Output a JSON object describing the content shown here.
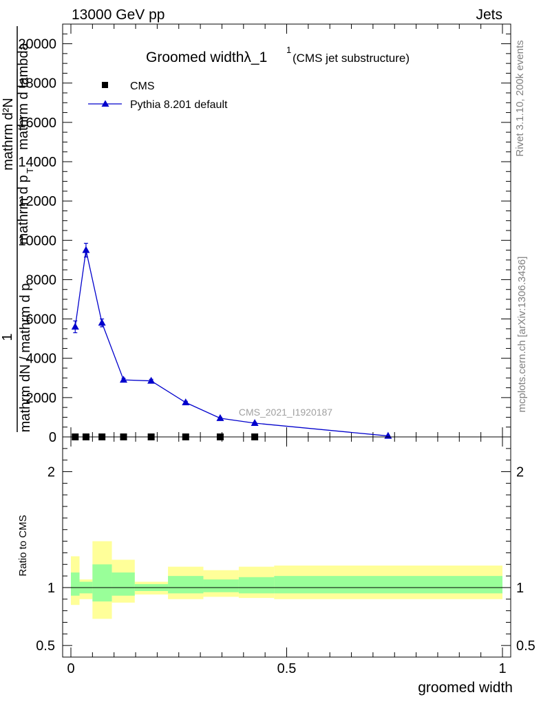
{
  "header": {
    "energy_label": "13000 GeV pp",
    "process_label": "Jets",
    "side_rivet": "Rivet 3.1.10,  200k events",
    "side_site": "mcplots.cern.ch [arXiv:1306.3436]"
  },
  "chart_data": [
    {
      "type": "line",
      "title": "Groomed widthλ_1",
      "title_superscript": "1",
      "subtitle": "(CMS jet substructure)",
      "analysis_label": "CMS_2021_I1920187",
      "ylabel_lines": [
        "1",
        "mathrm dN / mathrm d p",
        "mathrm d²N",
        "mathrm d p",
        "mathrm d lambda"
      ],
      "ylabel_sub": "T",
      "xlim": [
        0,
        1
      ],
      "ylim": [
        0,
        21000
      ],
      "y_ticks": [
        0,
        2000,
        4000,
        6000,
        8000,
        10000,
        12000,
        14000,
        16000,
        18000,
        20000
      ],
      "x_ticks": [
        0,
        0.5,
        1
      ],
      "legend": {
        "position": "top-left",
        "entries": [
          "CMS",
          "Pythia 8.201 default"
        ]
      },
      "series": [
        {
          "name": "CMS",
          "marker": "square",
          "color": "#000000",
          "x": [
            0.01,
            0.035,
            0.072,
            0.122,
            0.186,
            0.266,
            0.346,
            0.426
          ],
          "values": [
            0,
            0,
            0,
            0,
            0,
            0,
            0,
            0
          ]
        },
        {
          "name": "Pythia 8.201 default",
          "marker": "triangle",
          "color": "#0000cc",
          "x": [
            0.01,
            0.035,
            0.072,
            0.122,
            0.186,
            0.266,
            0.346,
            0.426,
            0.735
          ],
          "values": [
            5600,
            9500,
            5800,
            2900,
            2850,
            1750,
            950,
            700,
            50
          ],
          "errors": [
            300,
            350,
            200,
            80,
            80,
            60,
            50,
            40,
            20
          ]
        }
      ]
    },
    {
      "type": "area",
      "ylabel": "Ratio to CMS",
      "xlabel": "groomed width",
      "xlim": [
        0,
        1
      ],
      "ylim": [
        0.4,
        2.3
      ],
      "y_ticks": [
        0.5,
        1,
        2
      ],
      "x_ticks": [
        0,
        0.5,
        1
      ],
      "reference_value": 1,
      "bands": {
        "outer_color": "#ffff99",
        "inner_color": "#99ff99",
        "bins": [
          {
            "x0": 0.0,
            "x1": 0.02,
            "outer": [
              0.85,
              1.27
            ],
            "inner": [
              0.93,
              1.13
            ]
          },
          {
            "x0": 0.02,
            "x1": 0.05,
            "outer": [
              0.9,
              1.07
            ],
            "inner": [
              0.95,
              1.05
            ]
          },
          {
            "x0": 0.05,
            "x1": 0.095,
            "outer": [
              0.73,
              1.4
            ],
            "inner": [
              0.88,
              1.2
            ]
          },
          {
            "x0": 0.095,
            "x1": 0.148,
            "outer": [
              0.87,
              1.24
            ],
            "inner": [
              0.93,
              1.13
            ]
          },
          {
            "x0": 0.148,
            "x1": 0.225,
            "outer": [
              0.94,
              1.05
            ],
            "inner": [
              0.97,
              1.03
            ]
          },
          {
            "x0": 0.225,
            "x1": 0.307,
            "outer": [
              0.9,
              1.18
            ],
            "inner": [
              0.95,
              1.1
            ]
          },
          {
            "x0": 0.307,
            "x1": 0.389,
            "outer": [
              0.92,
              1.15
            ],
            "inner": [
              0.96,
              1.07
            ]
          },
          {
            "x0": 0.389,
            "x1": 0.471,
            "outer": [
              0.91,
              1.18
            ],
            "inner": [
              0.95,
              1.09
            ]
          },
          {
            "x0": 0.471,
            "x1": 1.0,
            "outer": [
              0.9,
              1.19
            ],
            "inner": [
              0.95,
              1.1
            ]
          }
        ]
      }
    }
  ]
}
